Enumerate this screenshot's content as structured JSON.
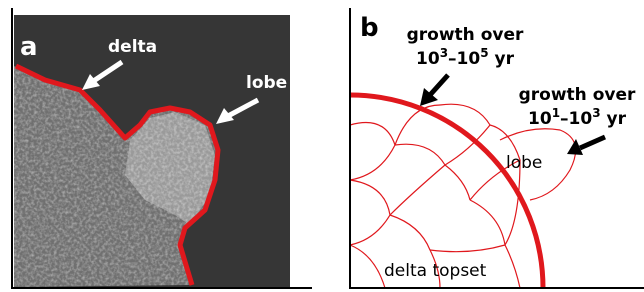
{
  "panel_a": {
    "label": "a",
    "annotations": [
      "delta",
      "lobe"
    ]
  },
  "panel_b": {
    "label": "b",
    "growth": [
      {
        "heading": "growth over",
        "timescale": [
          {
            "text": "10"
          },
          {
            "text": "3",
            "sup": true
          },
          {
            "text": "–10"
          },
          {
            "text": "5",
            "sup": true
          },
          {
            "text": " yr"
          }
        ]
      },
      {
        "heading": "growth over",
        "timescale": [
          {
            "text": "10"
          },
          {
            "text": "1",
            "sup": true
          },
          {
            "text": "–10"
          },
          {
            "text": "3",
            "sup": true
          },
          {
            "text": " yr"
          }
        ]
      }
    ],
    "annotations": [
      "lobe",
      "delta topset"
    ]
  }
}
